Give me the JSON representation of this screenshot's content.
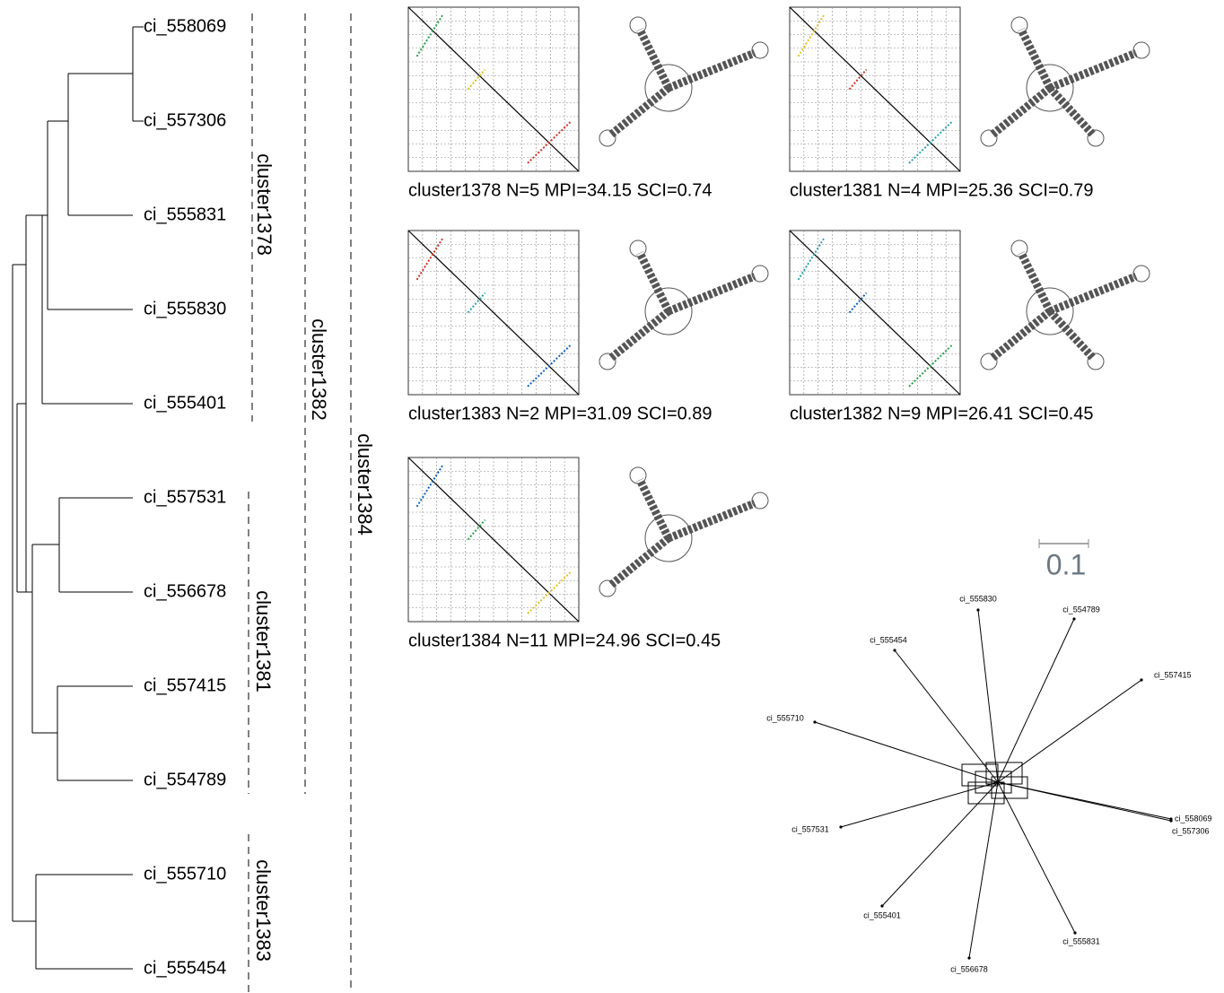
{
  "leaves": [
    "ci_558069",
    "ci_557306",
    "ci_555831",
    "ci_555830",
    "ci_555401",
    "ci_557531",
    "ci_556678",
    "ci_557415",
    "ci_554789",
    "ci_555710",
    "ci_555454"
  ],
  "clusters": [
    {
      "label": "cluster1378"
    },
    {
      "label": "cluster1382"
    },
    {
      "label": "cluster1384"
    },
    {
      "label": "cluster1381"
    },
    {
      "label": "cluster1383"
    }
  ],
  "panels": [
    {
      "caption": "cluster1378 N=5 MPI=34.15 SCI=0.74"
    },
    {
      "caption": "cluster1381 N=4 MPI=25.36 SCI=0.79"
    },
    {
      "caption": "cluster1383 N=2 MPI=31.09 SCI=0.89"
    },
    {
      "caption": "cluster1382 N=9 MPI=26.41 SCI=0.45"
    },
    {
      "caption": "cluster1384 N=11 MPI=24.96 SCI=0.45"
    }
  ],
  "scale_bar": {
    "label": "0.1"
  },
  "network": {
    "labels": [
      "ci_555830",
      "ci_554789",
      "ci_557415",
      "ci_555454",
      "ci_555710",
      "ci_558069",
      "ci_557306",
      "ci_557531",
      "ci_555401",
      "ci_555831",
      "ci_556678"
    ]
  }
}
